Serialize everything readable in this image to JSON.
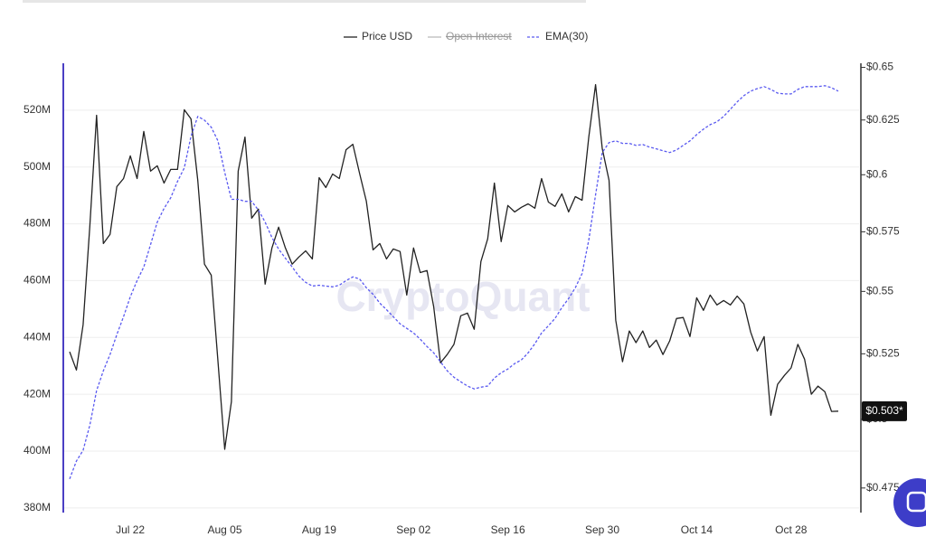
{
  "chart_data": {
    "type": "line",
    "watermark": "CryptoQuant",
    "last_value_label": "$0.503*",
    "categories": [
      null,
      null,
      null,
      null,
      null,
      null,
      null,
      null,
      null,
      "Jul 22",
      null,
      null,
      null,
      null,
      null,
      null,
      null,
      null,
      null,
      null,
      null,
      null,
      null,
      "Aug 05",
      null,
      null,
      null,
      null,
      null,
      null,
      null,
      null,
      null,
      null,
      null,
      null,
      null,
      "Aug 19",
      null,
      null,
      null,
      null,
      null,
      null,
      null,
      null,
      null,
      null,
      null,
      null,
      null,
      "Sep 02",
      null,
      null,
      null,
      null,
      null,
      null,
      null,
      null,
      null,
      null,
      null,
      null,
      null,
      "Sep 16",
      null,
      null,
      null,
      null,
      null,
      null,
      null,
      null,
      null,
      null,
      null,
      null,
      null,
      "Sep 30",
      null,
      null,
      null,
      null,
      null,
      null,
      null,
      null,
      null,
      null,
      null,
      null,
      null,
      "Oct 14",
      null,
      null,
      null,
      null,
      null,
      null,
      null,
      null,
      null,
      null,
      null,
      null,
      null,
      "Oct 28",
      null,
      null,
      null,
      null,
      null,
      null,
      null
    ],
    "series": [
      {
        "name": "Price USD",
        "color": "#222222",
        "axis": "y2",
        "style": "solid",
        "values": [
          0.5258,
          0.5187,
          0.5365,
          0.5778,
          0.6272,
          0.57,
          0.5739,
          0.5947,
          0.5983,
          0.6085,
          0.5983,
          0.6197,
          0.6016,
          0.604,
          0.5963,
          0.6024,
          0.6024,
          0.6298,
          0.6255,
          0.5975,
          0.5613,
          0.5567,
          0.5222,
          0.4889,
          0.5066,
          0.6016,
          0.6171,
          0.5809,
          0.5848,
          0.553,
          0.5681,
          0.577,
          0.5681,
          0.5613,
          0.5643,
          0.5669,
          0.5635,
          0.5987,
          0.5943,
          0.6003,
          0.5983,
          0.6113,
          0.6138,
          0.6007,
          0.5883,
          0.5673,
          0.57,
          0.5635,
          0.5677,
          0.5666,
          0.5485,
          0.5681,
          0.5578,
          0.5586,
          0.5437,
          0.5215,
          0.5247,
          0.5287,
          0.5401,
          0.5412,
          0.5347,
          0.5624,
          0.572,
          0.5963,
          0.5708,
          0.5864,
          0.5836,
          0.5856,
          0.5871,
          0.5852,
          0.5983,
          0.5879,
          0.586,
          0.5915,
          0.5836,
          0.5903,
          0.5887,
          0.6171,
          0.6417,
          0.6118,
          0.5975,
          0.5383,
          0.5219,
          0.534,
          0.5294,
          0.534,
          0.5275,
          0.5304,
          0.5247,
          0.5301,
          0.539,
          0.5394,
          0.5318,
          0.5474,
          0.5423,
          0.5485,
          0.5445,
          0.5463,
          0.5445,
          0.5481,
          0.5449,
          0.5336,
          0.5261,
          0.5318,
          0.5015,
          0.5132,
          0.5166,
          0.5195,
          0.5287,
          0.5229,
          0.5094,
          0.5125,
          0.5104,
          0.5029,
          0.503
        ]
      },
      {
        "name": "Open Interest",
        "color": "#bbbbbb",
        "visible": false
      },
      {
        "name": "EMA(30)",
        "color": "#5a5af0",
        "axis": "y",
        "style": "dashed",
        "values": [
          390.2,
          396.5,
          400.3,
          409.2,
          421.3,
          428.3,
          434.0,
          441.0,
          447.3,
          454.3,
          460.0,
          464.8,
          472.7,
          480.6,
          485.4,
          489.2,
          494.9,
          499.7,
          510.8,
          517.8,
          516.5,
          514.0,
          509.2,
          498.1,
          488.6,
          488.6,
          487.9,
          487.9,
          484.8,
          480.6,
          475.2,
          471.1,
          467.9,
          464.8,
          461.6,
          459.4,
          458.1,
          458.4,
          458.1,
          457.8,
          458.4,
          460.0,
          461.3,
          460.6,
          457.5,
          455.2,
          452.1,
          449.8,
          447.3,
          444.8,
          443.2,
          441.6,
          439.4,
          436.8,
          434.6,
          431.4,
          428.3,
          426.0,
          424.4,
          422.9,
          421.9,
          422.5,
          422.9,
          425.7,
          427.6,
          428.9,
          430.8,
          432.1,
          434.6,
          437.8,
          441.6,
          444.1,
          446.7,
          450.5,
          453.7,
          457.5,
          462.5,
          474.3,
          490.2,
          505.1,
          508.6,
          509.2,
          508.3,
          508.3,
          507.6,
          507.9,
          507.0,
          506.4,
          505.7,
          505.1,
          506.0,
          507.6,
          509.2,
          511.4,
          513.3,
          514.9,
          515.9,
          517.8,
          520.3,
          522.9,
          525.1,
          526.7,
          527.6,
          528.3,
          527.3,
          526.0,
          525.7,
          525.7,
          527.3,
          528.3,
          528.3,
          528.3,
          528.6,
          527.9,
          526.7
        ]
      }
    ],
    "ylim": [
      379,
      536.5
    ],
    "yticks": [
      {
        "value": 380,
        "label": "380M"
      },
      {
        "value": 400,
        "label": "400M"
      },
      {
        "value": 420,
        "label": "420M"
      },
      {
        "value": 440,
        "label": "440M"
      },
      {
        "value": 460,
        "label": "460M"
      },
      {
        "value": 480,
        "label": "480M"
      },
      {
        "value": 500,
        "label": "500M"
      },
      {
        "value": 520,
        "label": "520M"
      }
    ],
    "y2lim": [
      0.467,
      0.652
    ],
    "y2scale": "log",
    "y2ticks": [
      {
        "value": 0.475,
        "label": "$0.475"
      },
      {
        "value": 0.5,
        "label": "$0.5"
      },
      {
        "value": 0.525,
        "label": "$0.525"
      },
      {
        "value": 0.55,
        "label": "$0.55"
      },
      {
        "value": 0.575,
        "label": "$0.575"
      },
      {
        "value": 0.6,
        "label": "$0.6"
      },
      {
        "value": 0.625,
        "label": "$0.625"
      },
      {
        "value": 0.65,
        "label": "$0.65"
      }
    ],
    "grid": true
  }
}
